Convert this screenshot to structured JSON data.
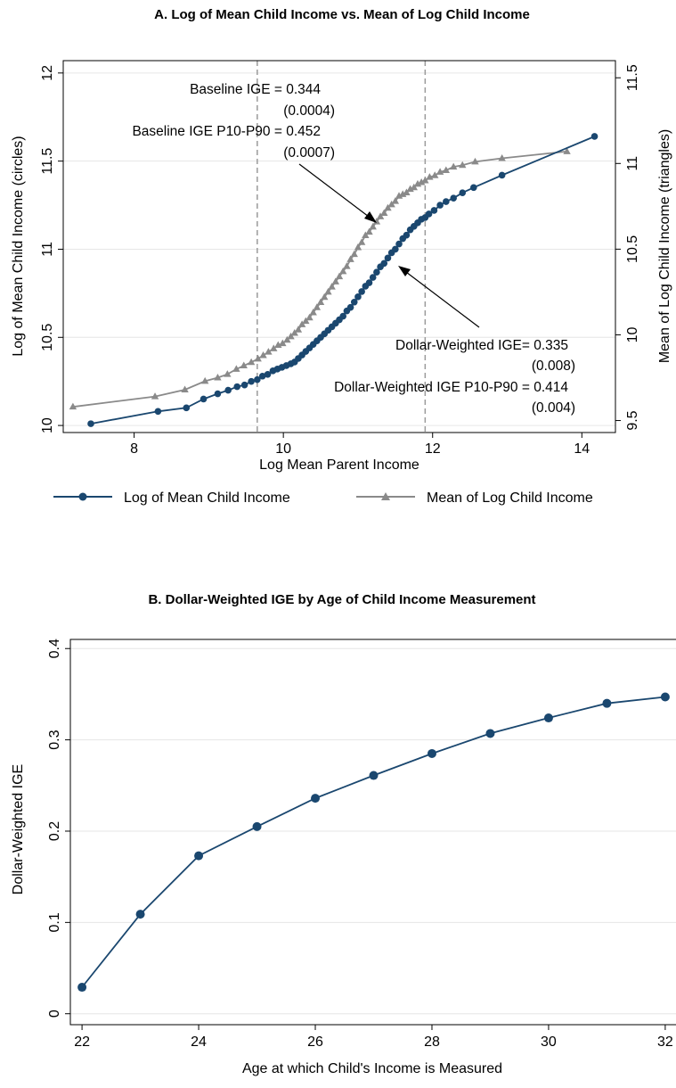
{
  "chart_data": [
    {
      "type": "line",
      "title": "A. Log of Mean Child Income vs. Mean of Log Child Income",
      "xlabel": "Log Mean Parent Income",
      "ylabel": "Log of Mean Child Income (circles)",
      "y2label": "Mean of Log Child Income (triangles)",
      "xlim": [
        7.05,
        14.45
      ],
      "ylim": [
        9.96,
        12.07
      ],
      "y2lim": [
        9.43,
        11.6
      ],
      "xticks": [
        "8",
        "10",
        "12",
        "14"
      ],
      "yticks": [
        "10",
        "10.5",
        "11",
        "11.5",
        "12"
      ],
      "y2ticks": [
        "9.5",
        "10",
        "10.5",
        "11",
        "11.5"
      ],
      "vlines": [
        9.65,
        11.9
      ],
      "grid": true,
      "legend_position": "bottom",
      "series": [
        {
          "name": "Log of Mean Child Income",
          "axis": "left",
          "marker": "circle",
          "color": "#1a476f",
          "x": [
            7.42,
            8.32,
            8.7,
            8.93,
            9.12,
            9.26,
            9.38,
            9.48,
            9.57,
            9.65,
            9.72,
            9.79,
            9.86,
            9.92,
            9.98,
            10.04,
            10.1,
            10.15,
            10.2,
            10.25,
            10.3,
            10.35,
            10.4,
            10.45,
            10.5,
            10.55,
            10.6,
            10.65,
            10.7,
            10.75,
            10.8,
            10.85,
            10.9,
            10.95,
            11.0,
            11.05,
            11.1,
            11.15,
            11.2,
            11.25,
            11.3,
            11.35,
            11.4,
            11.45,
            11.5,
            11.55,
            11.6,
            11.65,
            11.7,
            11.75,
            11.8,
            11.85,
            11.9,
            11.95,
            12.02,
            12.1,
            12.18,
            12.28,
            12.4,
            12.55,
            12.93,
            14.17
          ],
          "values": [
            10.01,
            10.08,
            10.1,
            10.15,
            10.18,
            10.2,
            10.22,
            10.23,
            10.25,
            10.26,
            10.28,
            10.29,
            10.31,
            10.32,
            10.33,
            10.34,
            10.35,
            10.36,
            10.38,
            10.4,
            10.42,
            10.44,
            10.46,
            10.48,
            10.5,
            10.52,
            10.54,
            10.56,
            10.58,
            10.6,
            10.62,
            10.65,
            10.67,
            10.7,
            10.73,
            10.76,
            10.79,
            10.81,
            10.84,
            10.87,
            10.9,
            10.92,
            10.95,
            10.98,
            11.0,
            11.03,
            11.06,
            11.08,
            11.11,
            11.13,
            11.15,
            11.17,
            11.18,
            11.2,
            11.22,
            11.25,
            11.27,
            11.29,
            11.32,
            11.35,
            11.42,
            11.64
          ]
        },
        {
          "name": "Mean of Log Child Income",
          "axis": "right",
          "marker": "triangle",
          "color": "#8a8a8a",
          "x": [
            7.18,
            8.28,
            8.68,
            8.95,
            9.12,
            9.25,
            9.37,
            9.47,
            9.57,
            9.66,
            9.73,
            9.8,
            9.87,
            9.93,
            9.99,
            10.05,
            10.1,
            10.15,
            10.2,
            10.25,
            10.3,
            10.35,
            10.4,
            10.45,
            10.5,
            10.55,
            10.6,
            10.65,
            10.7,
            10.75,
            10.8,
            10.85,
            10.9,
            10.95,
            11.0,
            11.05,
            11.1,
            11.15,
            11.2,
            11.25,
            11.3,
            11.35,
            11.4,
            11.45,
            11.5,
            11.55,
            11.6,
            11.65,
            11.7,
            11.75,
            11.8,
            11.85,
            11.9,
            11.96,
            12.03,
            12.1,
            12.18,
            12.28,
            12.4,
            12.57,
            12.93,
            13.8
          ],
          "values": [
            9.58,
            9.64,
            9.68,
            9.73,
            9.75,
            9.77,
            9.8,
            9.82,
            9.84,
            9.86,
            9.88,
            9.9,
            9.92,
            9.94,
            9.95,
            9.97,
            9.99,
            10.01,
            10.03,
            10.06,
            10.08,
            10.1,
            10.13,
            10.16,
            10.19,
            10.22,
            10.25,
            10.28,
            10.31,
            10.34,
            10.37,
            10.4,
            10.44,
            10.47,
            10.51,
            10.54,
            10.58,
            10.6,
            10.63,
            10.66,
            10.69,
            10.71,
            10.74,
            10.76,
            10.78,
            10.81,
            10.82,
            10.83,
            10.85,
            10.86,
            10.88,
            10.89,
            10.9,
            10.92,
            10.93,
            10.95,
            10.96,
            10.98,
            10.99,
            11.01,
            11.03,
            11.07
          ]
        }
      ],
      "annotations": [
        {
          "label": "Baseline IGE = 0.344",
          "se": "(0.0004)"
        },
        {
          "label": "Baseline IGE P10-P90 = 0.452",
          "se": "(0.0007)"
        },
        {
          "label": "Dollar-Weighted IGE= 0.335",
          "se": "(0.008)"
        },
        {
          "label": "Dollar-Weighted IGE P10-P90 = 0.414",
          "se": "(0.004)"
        }
      ]
    },
    {
      "type": "line",
      "title": "B. Dollar-Weighted IGE by Age of Child Income Measurement",
      "xlabel": "Age at which Child's Income is Measured",
      "ylabel": "Dollar-Weighted IGE",
      "xlim": [
        21.8,
        32.2
      ],
      "ylim": [
        -0.012,
        0.41
      ],
      "xticks": [
        "22",
        "24",
        "26",
        "28",
        "30",
        "32"
      ],
      "yticks": [
        "0",
        "0.1",
        "0.2",
        "0.3",
        "0.4"
      ],
      "grid": true,
      "series": [
        {
          "name": "",
          "marker": "circle",
          "color": "#1a476f",
          "x": [
            22,
            23,
            24,
            25,
            26,
            27,
            28,
            29,
            30,
            31,
            32
          ],
          "values": [
            0.029,
            0.109,
            0.173,
            0.205,
            0.236,
            0.261,
            0.285,
            0.307,
            0.324,
            0.34,
            0.347
          ]
        }
      ]
    }
  ]
}
